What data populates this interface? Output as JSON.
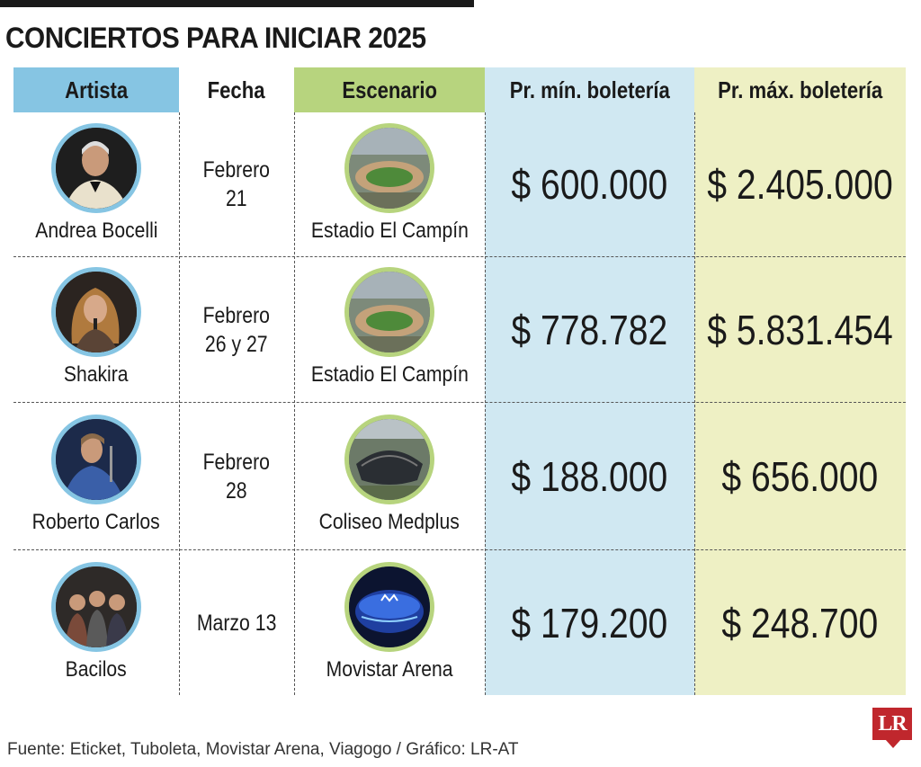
{
  "title": "CONCIERTOS PARA INICIAR 2025",
  "headers": {
    "artist": "Artista",
    "date": "Fecha",
    "venue": "Escenario",
    "min_price": "Pr. mín. boletería",
    "max_price": "Pr. máx. boletería"
  },
  "rows": [
    {
      "artist": "Andrea Bocelli",
      "date": "Febrero\n21",
      "venue": "Estadio El Campín",
      "min_price": "$ 600.000",
      "max_price": "$ 2.405.000"
    },
    {
      "artist": "Shakira",
      "date": "Febrero\n26 y 27",
      "venue": "Estadio El Campín",
      "min_price": "$ 778.782",
      "max_price": "$ 5.831.454"
    },
    {
      "artist": "Roberto Carlos",
      "date": "Febrero\n28",
      "venue": "Coliseo Medplus",
      "min_price": "$ 188.000",
      "max_price": "$ 656.000"
    },
    {
      "artist": "Bacilos",
      "date": "Marzo 13",
      "venue": "Movistar Arena",
      "min_price": "$ 179.200",
      "max_price": "$ 248.700"
    }
  ],
  "footer": "Fuente: Eticket, Tuboleta, Movistar Arena, Viagogo / Gráfico: LR-AT",
  "logo": "LR",
  "colors": {
    "artist_header": "#86c5e3",
    "venue_header": "#b7d47e",
    "min_column": "#d0e8f2",
    "max_column": "#eef0c4",
    "logo": "#c0272d"
  }
}
